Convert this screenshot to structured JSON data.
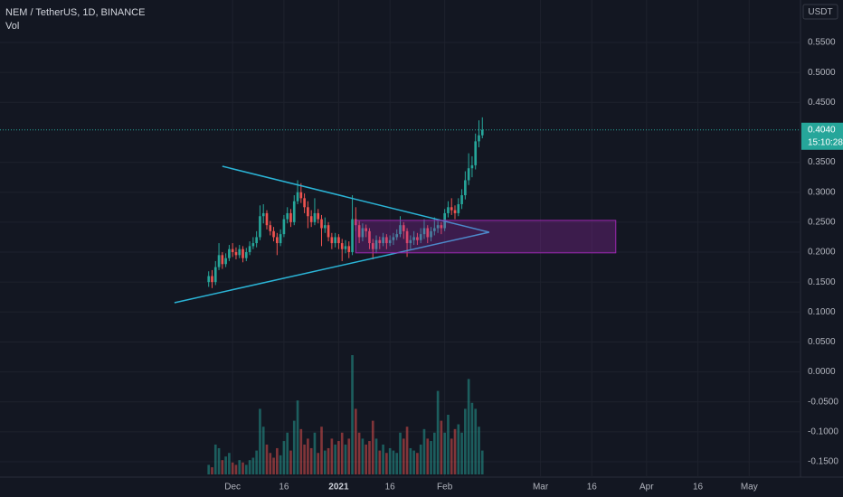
{
  "chart_data": {
    "type": "candlestick",
    "title": "NEM / TetherUS, 1D, BINANCE",
    "subtitle": "Vol",
    "currency": "USDT",
    "x": [
      "2020-11-24",
      "2020-11-25",
      "2020-11-26",
      "2020-11-27",
      "2020-11-28",
      "2020-11-29",
      "2020-11-30",
      "2020-12-01",
      "2020-12-02",
      "2020-12-03",
      "2020-12-04",
      "2020-12-05",
      "2020-12-06",
      "2020-12-07",
      "2020-12-08",
      "2020-12-09",
      "2020-12-10",
      "2020-12-11",
      "2020-12-12",
      "2020-12-13",
      "2020-12-14",
      "2020-12-15",
      "2020-12-16",
      "2020-12-17",
      "2020-12-18",
      "2020-12-19",
      "2020-12-20",
      "2020-12-21",
      "2020-12-22",
      "2020-12-23",
      "2020-12-24",
      "2020-12-25",
      "2020-12-26",
      "2020-12-27",
      "2020-12-28",
      "2020-12-29",
      "2020-12-30",
      "2020-12-31",
      "2021-01-01",
      "2021-01-02",
      "2021-01-03",
      "2021-01-04",
      "2021-01-05",
      "2021-01-06",
      "2021-01-07",
      "2021-01-08",
      "2021-01-09",
      "2021-01-10",
      "2021-01-11",
      "2021-01-12",
      "2021-01-13",
      "2021-01-14",
      "2021-01-15",
      "2021-01-16",
      "2021-01-17",
      "2021-01-18",
      "2021-01-19",
      "2021-01-20",
      "2021-01-21",
      "2021-01-22",
      "2021-01-23",
      "2021-01-24",
      "2021-01-25",
      "2021-01-26",
      "2021-01-27",
      "2021-01-28",
      "2021-01-29",
      "2021-01-30",
      "2021-01-31",
      "2021-02-01",
      "2021-02-02",
      "2021-02-03",
      "2021-02-04",
      "2021-02-05",
      "2021-02-06",
      "2021-02-07",
      "2021-02-08",
      "2021-02-09",
      "2021-02-10",
      "2021-02-11",
      "2021-02-12"
    ],
    "open": [
      0.15,
      0.16,
      0.15,
      0.175,
      0.195,
      0.18,
      0.19,
      0.205,
      0.2,
      0.195,
      0.205,
      0.19,
      0.2,
      0.21,
      0.215,
      0.225,
      0.26,
      0.265,
      0.245,
      0.235,
      0.225,
      0.215,
      0.23,
      0.255,
      0.265,
      0.25,
      0.285,
      0.3,
      0.29,
      0.275,
      0.26,
      0.25,
      0.265,
      0.255,
      0.24,
      0.245,
      0.225,
      0.215,
      0.225,
      0.215,
      0.205,
      0.21,
      0.2,
      0.255,
      0.245,
      0.225,
      0.24,
      0.235,
      0.215,
      0.205,
      0.22,
      0.215,
      0.225,
      0.215,
      0.22,
      0.225,
      0.23,
      0.245,
      0.235,
      0.215,
      0.22,
      0.225,
      0.22,
      0.23,
      0.24,
      0.225,
      0.235,
      0.24,
      0.245,
      0.24,
      0.265,
      0.275,
      0.27,
      0.265,
      0.28,
      0.295,
      0.32,
      0.34,
      0.345,
      0.385,
      0.395
    ],
    "high": [
      0.168,
      0.17,
      0.185,
      0.215,
      0.2,
      0.198,
      0.212,
      0.215,
      0.208,
      0.212,
      0.21,
      0.207,
      0.218,
      0.225,
      0.235,
      0.278,
      0.28,
      0.27,
      0.252,
      0.242,
      0.232,
      0.238,
      0.262,
      0.275,
      0.272,
      0.295,
      0.32,
      0.315,
      0.298,
      0.285,
      0.27,
      0.29,
      0.272,
      0.262,
      0.258,
      0.25,
      0.232,
      0.232,
      0.23,
      0.222,
      0.22,
      0.218,
      0.295,
      0.275,
      0.252,
      0.248,
      0.246,
      0.24,
      0.222,
      0.228,
      0.226,
      0.232,
      0.23,
      0.228,
      0.232,
      0.238,
      0.26,
      0.25,
      0.24,
      0.228,
      0.235,
      0.232,
      0.24,
      0.255,
      0.245,
      0.242,
      0.258,
      0.252,
      0.25,
      0.272,
      0.285,
      0.29,
      0.278,
      0.29,
      0.305,
      0.335,
      0.365,
      0.36,
      0.398,
      0.42,
      0.425
    ],
    "low": [
      0.142,
      0.14,
      0.145,
      0.17,
      0.172,
      0.175,
      0.185,
      0.192,
      0.188,
      0.19,
      0.183,
      0.185,
      0.195,
      0.205,
      0.208,
      0.22,
      0.248,
      0.238,
      0.228,
      0.218,
      0.195,
      0.21,
      0.225,
      0.248,
      0.242,
      0.245,
      0.28,
      0.282,
      0.265,
      0.24,
      0.242,
      0.245,
      0.248,
      0.21,
      0.232,
      0.218,
      0.205,
      0.208,
      0.205,
      0.185,
      0.198,
      0.19,
      0.195,
      0.235,
      0.215,
      0.218,
      0.225,
      0.205,
      0.188,
      0.198,
      0.205,
      0.21,
      0.205,
      0.21,
      0.212,
      0.22,
      0.225,
      0.222,
      0.192,
      0.205,
      0.212,
      0.212,
      0.215,
      0.222,
      0.215,
      0.218,
      0.228,
      0.232,
      0.23,
      0.235,
      0.258,
      0.262,
      0.255,
      0.26,
      0.272,
      0.288,
      0.312,
      0.325,
      0.338,
      0.375,
      0.39
    ],
    "close": [
      0.16,
      0.15,
      0.175,
      0.195,
      0.18,
      0.19,
      0.205,
      0.2,
      0.195,
      0.205,
      0.19,
      0.2,
      0.21,
      0.215,
      0.225,
      0.26,
      0.265,
      0.245,
      0.235,
      0.225,
      0.215,
      0.23,
      0.255,
      0.265,
      0.25,
      0.285,
      0.3,
      0.29,
      0.275,
      0.26,
      0.25,
      0.265,
      0.255,
      0.24,
      0.245,
      0.225,
      0.215,
      0.225,
      0.215,
      0.205,
      0.21,
      0.2,
      0.255,
      0.245,
      0.225,
      0.24,
      0.235,
      0.215,
      0.205,
      0.22,
      0.215,
      0.225,
      0.215,
      0.22,
      0.225,
      0.23,
      0.245,
      0.235,
      0.215,
      0.22,
      0.225,
      0.22,
      0.23,
      0.24,
      0.225,
      0.235,
      0.24,
      0.245,
      0.24,
      0.265,
      0.275,
      0.27,
      0.265,
      0.28,
      0.295,
      0.32,
      0.34,
      0.345,
      0.385,
      0.395,
      0.404
    ],
    "volume": [
      8,
      6,
      25,
      22,
      12,
      15,
      18,
      10,
      8,
      12,
      10,
      8,
      12,
      14,
      20,
      55,
      40,
      25,
      18,
      14,
      22,
      16,
      28,
      35,
      20,
      45,
      62,
      38,
      25,
      30,
      22,
      35,
      18,
      40,
      20,
      22,
      30,
      25,
      28,
      35,
      25,
      30,
      100,
      55,
      35,
      30,
      25,
      28,
      45,
      30,
      20,
      25,
      18,
      22,
      20,
      18,
      35,
      30,
      40,
      22,
      20,
      18,
      25,
      38,
      30,
      28,
      35,
      70,
      45,
      35,
      50,
      30,
      38,
      42,
      35,
      55,
      80,
      60,
      55,
      40,
      20
    ],
    "up_color": "#26a69a",
    "down_color": "#ef5350",
    "xlim": [
      "2020-09-24",
      "2021-05-16"
    ],
    "xticks": [
      {
        "value": "2020-12-01",
        "label": "Dec"
      },
      {
        "value": "2020-12-16",
        "label": "16"
      },
      {
        "value": "2021-01-01",
        "label": "2021",
        "bold": true
      },
      {
        "value": "2021-01-16",
        "label": "16"
      },
      {
        "value": "2021-02-01",
        "label": "Feb"
      },
      {
        "value": "2021-03-01",
        "label": "Mar"
      },
      {
        "value": "2021-03-16",
        "label": "16"
      },
      {
        "value": "2021-04-01",
        "label": "Apr"
      },
      {
        "value": "2021-04-16",
        "label": "16"
      },
      {
        "value": "2021-05-01",
        "label": "May"
      }
    ],
    "ylim": [
      -0.1756,
      0.6209
    ],
    "yticks": [
      {
        "value": 0.55,
        "label": "0.5500"
      },
      {
        "value": 0.5,
        "label": "0.5000"
      },
      {
        "value": 0.45,
        "label": "0.4500"
      },
      {
        "value": 0.35,
        "label": "0.3500"
      },
      {
        "value": 0.3,
        "label": "0.3000"
      },
      {
        "value": 0.25,
        "label": "0.2500"
      },
      {
        "value": 0.2,
        "label": "0.2000"
      },
      {
        "value": 0.15,
        "label": "0.1500"
      },
      {
        "value": 0.1,
        "label": "0.1000"
      },
      {
        "value": 0.05,
        "label": "0.0500"
      },
      {
        "value": 0,
        "label": "0.0000"
      },
      {
        "value": -0.05,
        "label": "-0.0500"
      },
      {
        "value": -0.1,
        "label": "-0.1000"
      },
      {
        "value": -0.15,
        "label": "-0.1500"
      }
    ],
    "grid": true,
    "last_price": {
      "value": 0.404,
      "label": "0.4040"
    },
    "countdown": "15:10:28",
    "trend_lines": [
      {
        "color": "#2bb4d6",
        "points": [
          [
            "2020-11-14",
            0.1155
          ],
          [
            "2021-02-14",
            0.2332
          ]
        ]
      },
      {
        "color": "#2bb4d6",
        "points": [
          [
            "2020-11-28",
            0.3433
          ],
          [
            "2021-02-14",
            0.2332
          ]
        ]
      }
    ],
    "zone": {
      "color": "#9c27b0",
      "x": [
        "2021-01-06",
        "2021-03-23"
      ],
      "y": [
        0.1988,
        0.253
      ]
    }
  }
}
